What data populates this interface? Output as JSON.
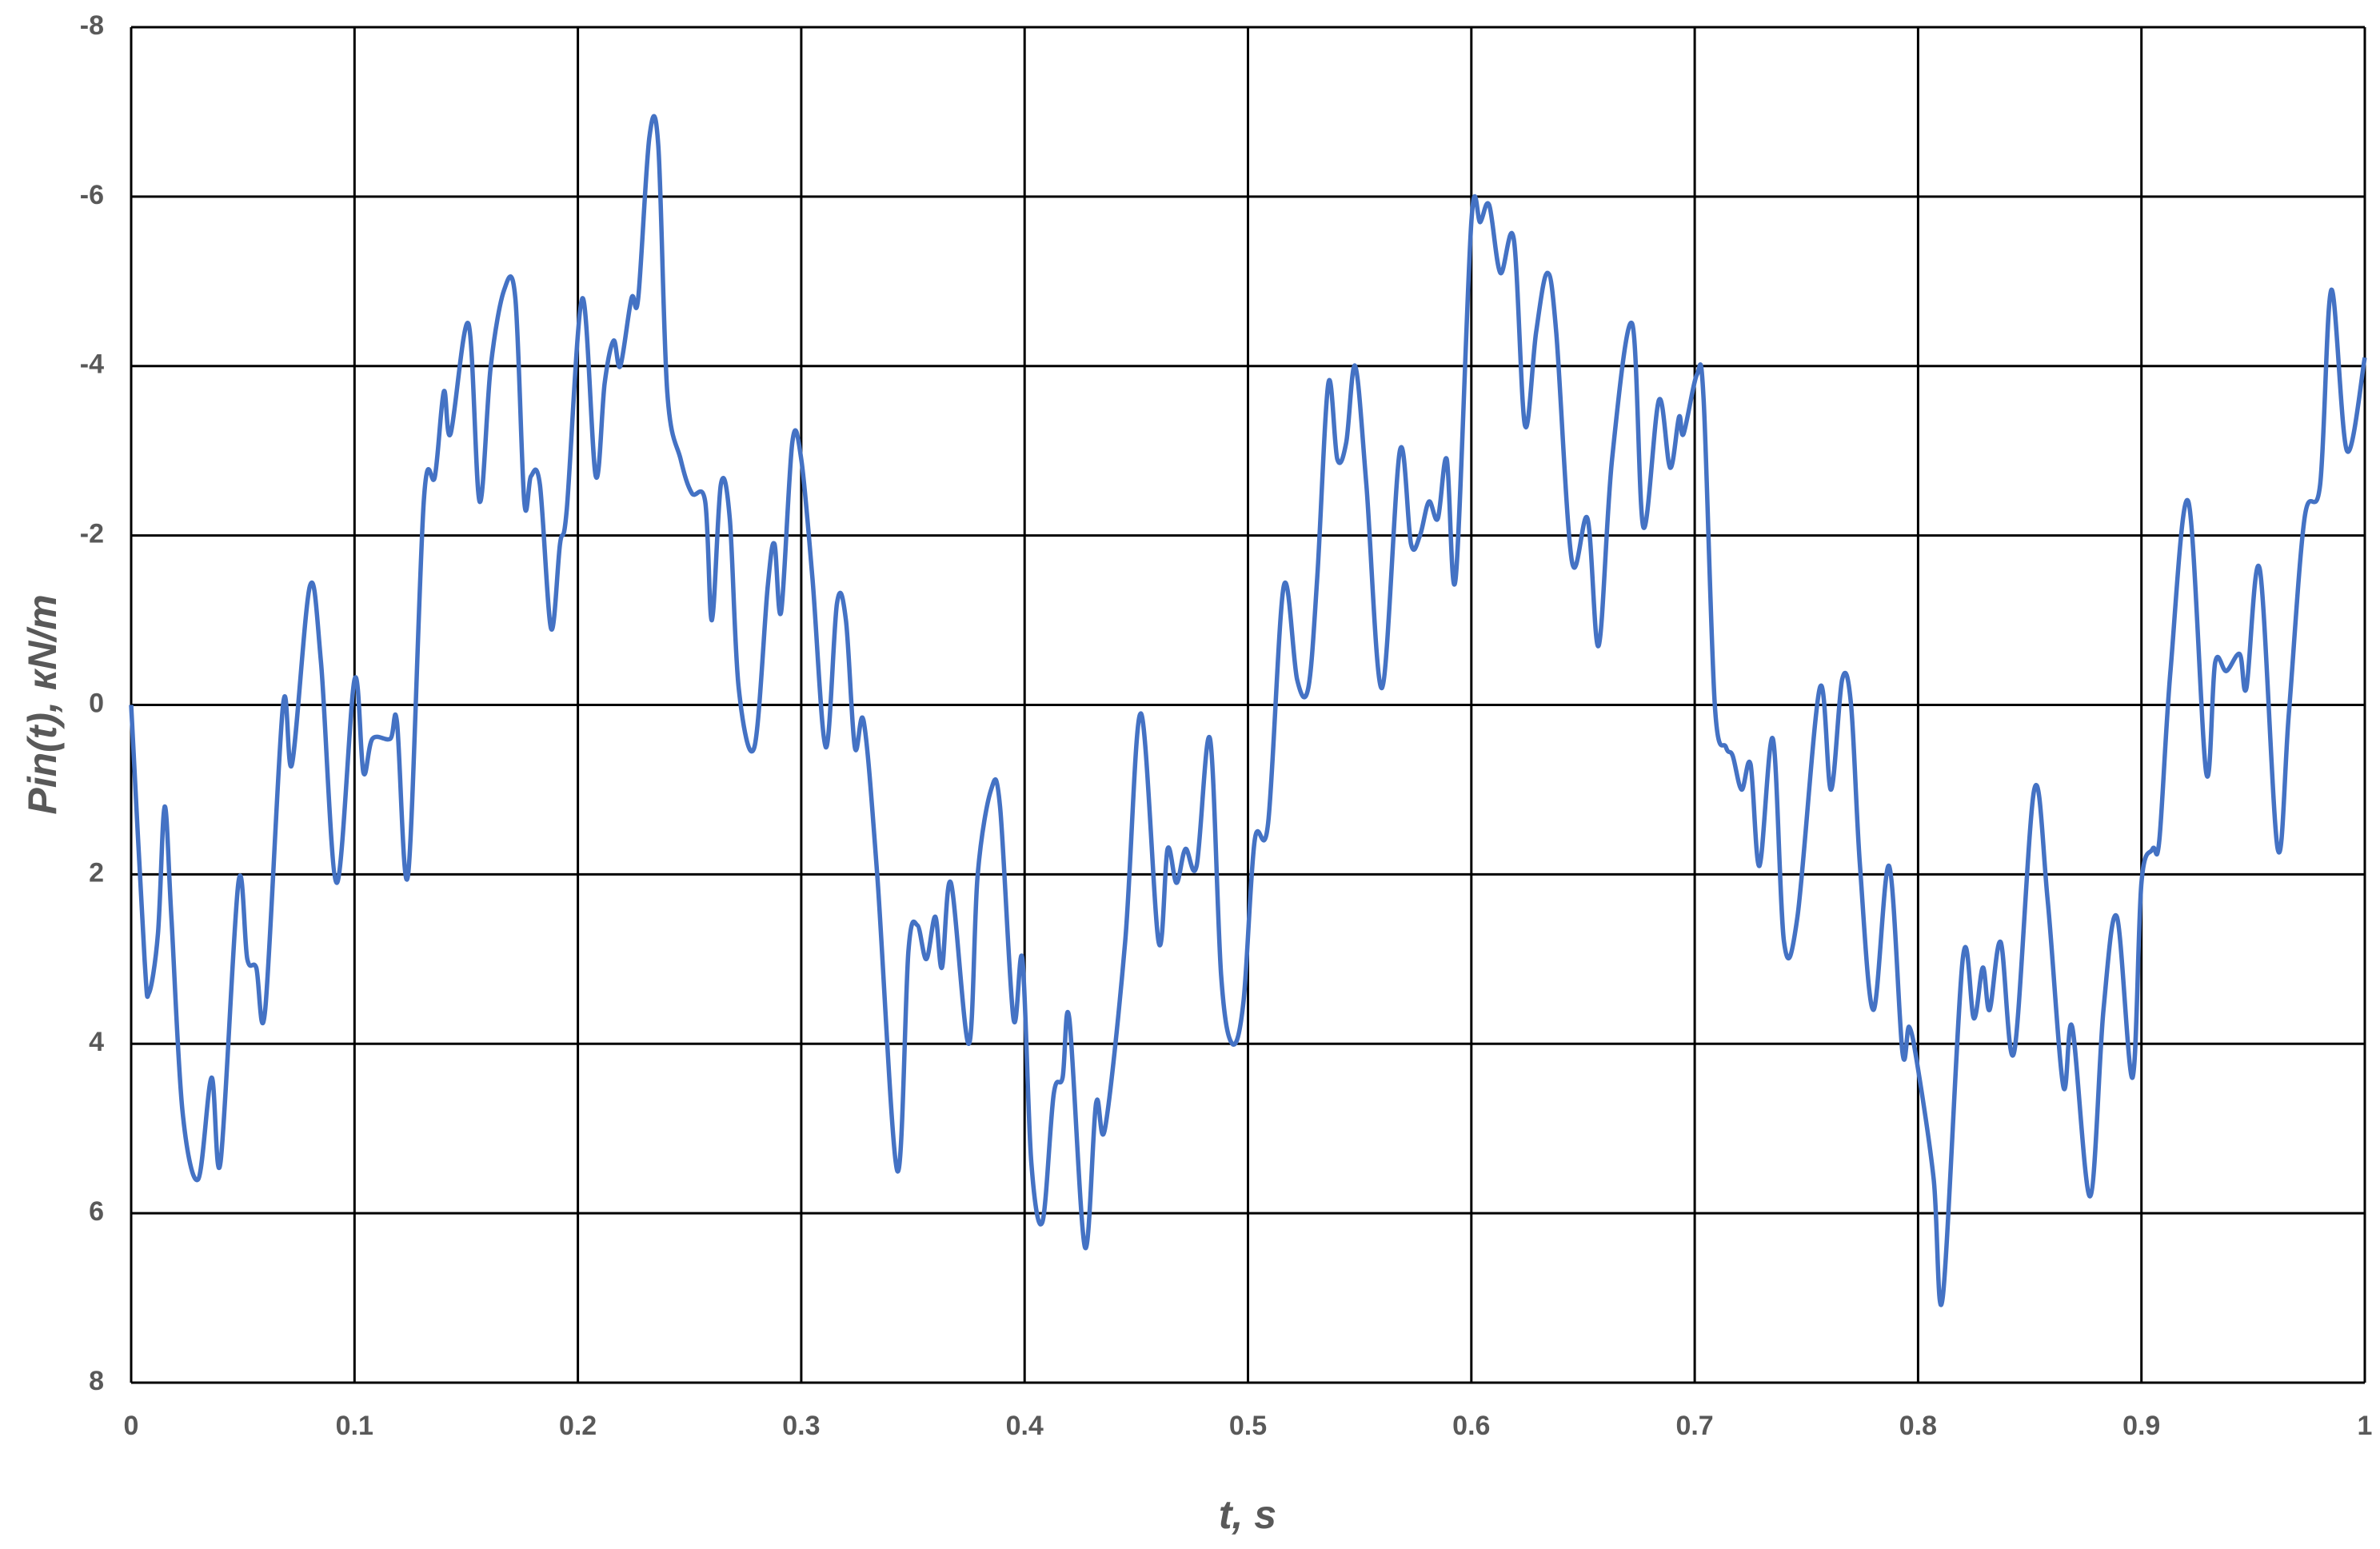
{
  "chart_data": {
    "type": "line",
    "x_label": "t, s",
    "y_label": "Pin(t), кN/m",
    "x": [
      0,
      0.006,
      0.008,
      0.012,
      0.015,
      0.018,
      0.023,
      0.03,
      0.036,
      0.04,
      0.048,
      0.052,
      0.056,
      0.06,
      0.068,
      0.072,
      0.08,
      0.085,
      0.092,
      0.1,
      0.104,
      0.108,
      0.116,
      0.119,
      0.124,
      0.131,
      0.136,
      0.14,
      0.143,
      0.151,
      0.156,
      0.161,
      0.167,
      0.172,
      0.176,
      0.179,
      0.183,
      0.188,
      0.192,
      0.195,
      0.202,
      0.208,
      0.212,
      0.216,
      0.219,
      0.224,
      0.227,
      0.232,
      0.236,
      0.24,
      0.246,
      0.251,
      0.257,
      0.26,
      0.264,
      0.268,
      0.272,
      0.279,
      0.285,
      0.288,
      0.291,
      0.296,
      0.3,
      0.305,
      0.311,
      0.316,
      0.32,
      0.324,
      0.328,
      0.334,
      0.343,
      0.348,
      0.352,
      0.356,
      0.36,
      0.363,
      0.367,
      0.375,
      0.379,
      0.385,
      0.389,
      0.395,
      0.399,
      0.403,
      0.408,
      0.413,
      0.417,
      0.42,
      0.427,
      0.432,
      0.436,
      0.445,
      0.452,
      0.46,
      0.464,
      0.468,
      0.472,
      0.477,
      0.483,
      0.488,
      0.493,
      0.498,
      0.503,
      0.509,
      0.516,
      0.522,
      0.527,
      0.531,
      0.536,
      0.54,
      0.544,
      0.548,
      0.553,
      0.56,
      0.568,
      0.573,
      0.577,
      0.581,
      0.585,
      0.589,
      0.593,
      0.6,
      0.604,
      0.608,
      0.613,
      0.619,
      0.624,
      0.629,
      0.634,
      0.638,
      0.645,
      0.652,
      0.657,
      0.663,
      0.672,
      0.677,
      0.684,
      0.689,
      0.693,
      0.695,
      0.701,
      0.704,
      0.709,
      0.714,
      0.717,
      0.721,
      0.725,
      0.729,
      0.735,
      0.74,
      0.746,
      0.756,
      0.761,
      0.766,
      0.77,
      0.774,
      0.78,
      0.787,
      0.793,
      0.796,
      0.8,
      0.807,
      0.811,
      0.82,
      0.825,
      0.829,
      0.832,
      0.837,
      0.843,
      0.852,
      0.858,
      0.865,
      0.869,
      0.877,
      0.883,
      0.889,
      0.896,
      0.9,
      0.905,
      0.908,
      0.913,
      0.921,
      0.929,
      0.933,
      0.938,
      0.944,
      0.947,
      0.953,
      0.961,
      0.966,
      0.973,
      0.98,
      0.985,
      0.992,
      1.0
    ],
    "series": [
      {
        "color": "#4472c4",
        "values": [
          0,
          3.0,
          3.4,
          2.7,
          1.2,
          2.5,
          4.8,
          5.6,
          4.4,
          5.4,
          2.1,
          3.0,
          3.1,
          3.6,
          0.0,
          0.7,
          -1.4,
          -0.5,
          2.1,
          -0.3,
          0.8,
          0.4,
          0.4,
          0.2,
          2.0,
          -2.4,
          -2.7,
          -3.7,
          -3.2,
          -4.5,
          -2.4,
          -4.0,
          -4.9,
          -4.8,
          -2.4,
          -2.7,
          -2.6,
          -0.9,
          -1.9,
          -2.3,
          -4.8,
          -2.7,
          -3.8,
          -4.3,
          -4.0,
          -4.8,
          -4.8,
          -6.7,
          -6.6,
          -3.7,
          -2.9,
          -2.5,
          -2.4,
          -1.0,
          -2.6,
          -2.2,
          -0.2,
          0.5,
          -1.4,
          -1.9,
          -1.1,
          -3.1,
          -2.9,
          -1.5,
          0.5,
          -1.2,
          -1.0,
          0.5,
          0.2,
          2.0,
          5.5,
          2.9,
          2.6,
          3.0,
          2.5,
          3.1,
          2.1,
          4.0,
          2.0,
          1.0,
          1.2,
          3.7,
          3.0,
          5.4,
          6.1,
          4.6,
          4.4,
          3.7,
          6.4,
          4.7,
          5.0,
          2.8,
          0.1,
          2.8,
          1.7,
          2.1,
          1.7,
          1.9,
          0.4,
          3.2,
          4.0,
          3.5,
          1.6,
          1.4,
          -1.4,
          -0.3,
          -0.2,
          -1.5,
          -3.8,
          -2.9,
          -3.1,
          -4.0,
          -2.6,
          -0.2,
          -3.0,
          -1.9,
          -2.0,
          -2.4,
          -2.2,
          -2.9,
          -1.5,
          -5.7,
          -5.7,
          -5.9,
          -5.1,
          -5.5,
          -3.3,
          -4.4,
          -5.1,
          -4.4,
          -1.7,
          -2.2,
          -0.7,
          -2.9,
          -4.5,
          -2.1,
          -3.6,
          -2.8,
          -3.4,
          -3.2,
          -3.9,
          -3.6,
          0.0,
          0.5,
          0.6,
          1.0,
          0.7,
          1.9,
          0.4,
          2.8,
          2.5,
          -0.2,
          1.0,
          -0.3,
          0.0,
          1.9,
          3.6,
          1.9,
          4.1,
          3.8,
          4.3,
          5.6,
          7.0,
          3.0,
          3.7,
          3.1,
          3.6,
          2.8,
          4.1,
          1.0,
          2.3,
          4.5,
          3.8,
          5.8,
          3.6,
          2.5,
          4.4,
          2.1,
          1.7,
          1.6,
          -0.4,
          -2.4,
          0.8,
          -0.5,
          -0.4,
          -0.6,
          -0.2,
          -1.6,
          1.7,
          0.1,
          -2.2,
          -2.6,
          -4.9,
          -3.0,
          -4.1
        ]
      }
    ],
    "xlim": [
      0,
      1
    ],
    "xticks": [
      0,
      0.1,
      0.2,
      0.3,
      0.4,
      0.5,
      0.6,
      0.7,
      0.8,
      0.9,
      1
    ],
    "ylim": [
      -8,
      8
    ],
    "yticks": [
      -8,
      -6,
      -4,
      -2,
      0,
      2,
      4,
      6,
      8
    ],
    "y_inverted": true,
    "grid": true
  }
}
